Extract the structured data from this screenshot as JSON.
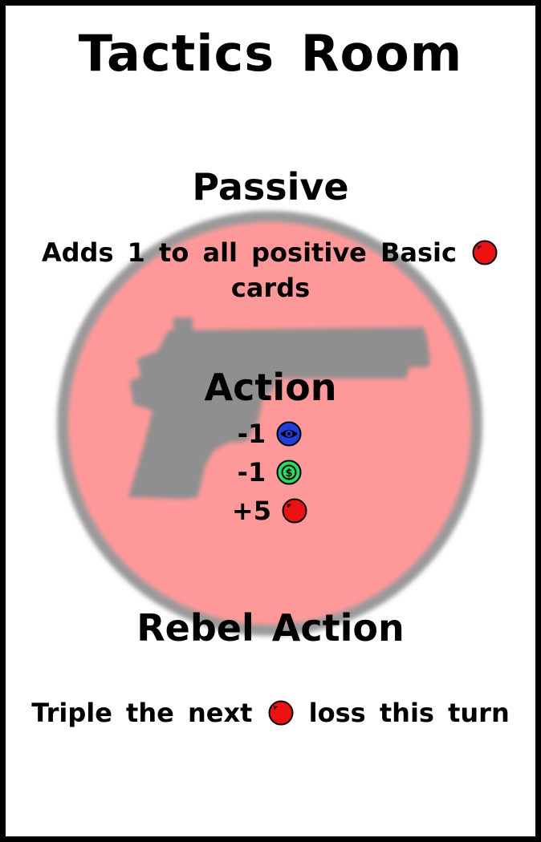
{
  "card": {
    "title": "Tactics Room",
    "passive": {
      "heading": "Passive",
      "text_before": "Adds 1 to all positive Basic",
      "text_after": "cards",
      "icon": "gun-icon"
    },
    "action": {
      "heading": "Action",
      "items": [
        {
          "value": "-1",
          "icon": "eye-icon",
          "color": "#1f3fe0"
        },
        {
          "value": "-1",
          "icon": "money-icon",
          "color": "#22e05a"
        },
        {
          "value": "+5",
          "icon": "gun-icon",
          "color": "#ee1111"
        }
      ]
    },
    "rebel_action": {
      "heading": "Rebel Action",
      "text_before": "Triple the next",
      "text_after": "loss this turn",
      "icon": "gun-icon"
    },
    "background_icon": "gun-emblem",
    "colors": {
      "emblem_fill": "#ff9999",
      "emblem_ring": "#9a9a9a",
      "gun": "#8f8f8f",
      "gun_token": "#ee1111",
      "eye_token": "#1f3fe0",
      "money_token": "#22e05a"
    }
  }
}
